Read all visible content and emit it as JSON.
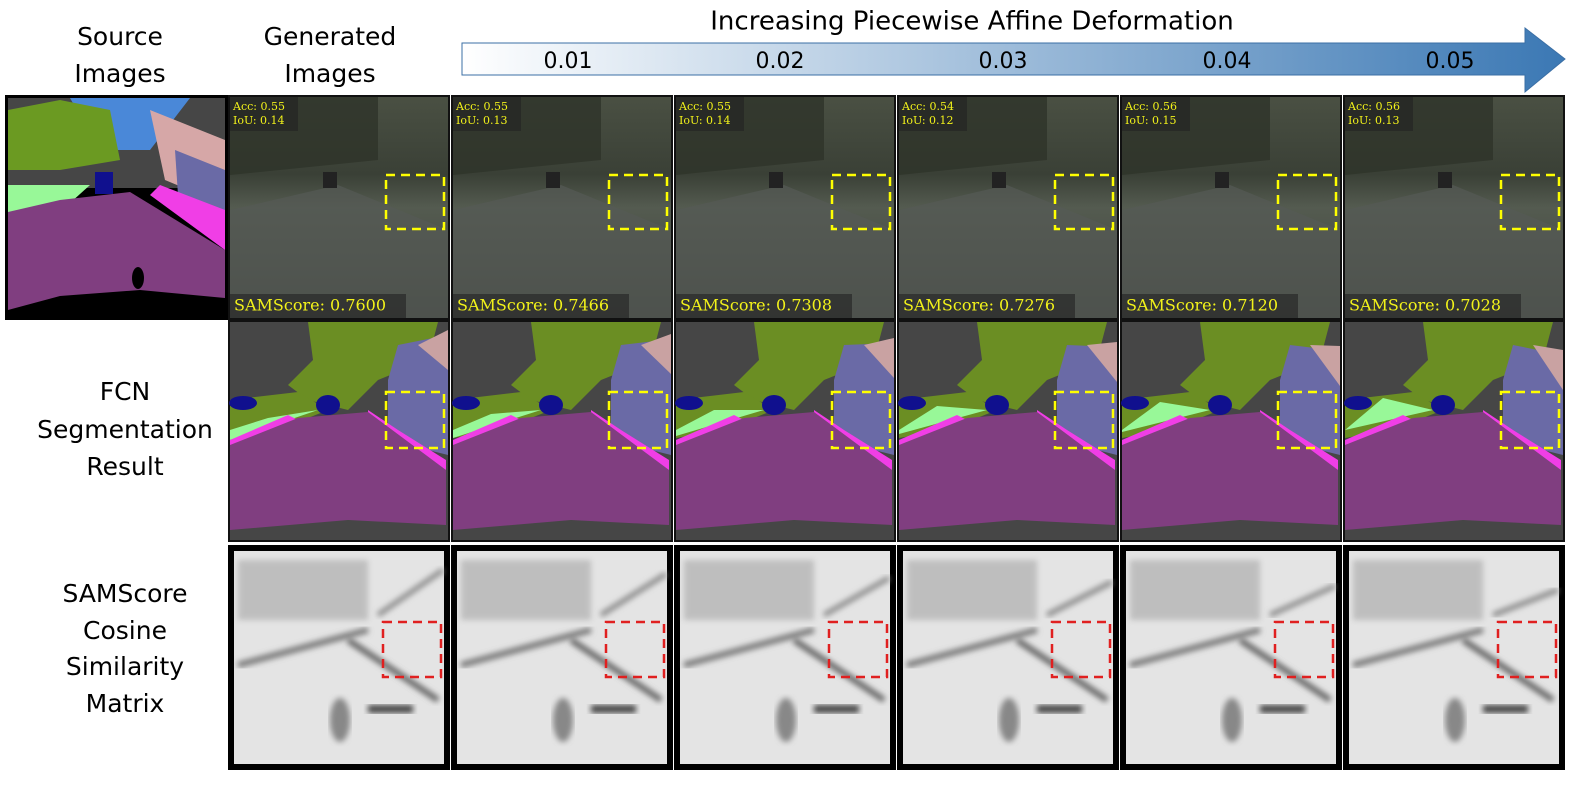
{
  "header": {
    "source": [
      "Source",
      "Images"
    ],
    "generated": [
      "Generated",
      "Images"
    ],
    "arrow_title": "Increasing Piecewise Affine Deformation",
    "levels": [
      "0.01",
      "0.02",
      "0.03",
      "0.04",
      "0.05"
    ]
  },
  "row_labels": {
    "segmentation": [
      "FCN",
      "Segmentation",
      "Result"
    ],
    "similarity": [
      "SAMScore",
      "Cosine",
      "Similarity",
      "Matrix"
    ]
  },
  "columns": [
    {
      "acc": "Acc: 0.55",
      "iou": "IoU: 0.14",
      "samscore": "SAMScore: 0.7600"
    },
    {
      "acc": "Acc: 0.55",
      "iou": "IoU: 0.13",
      "samscore": "SAMScore: 0.7466"
    },
    {
      "acc": "Acc: 0.55",
      "iou": "IoU: 0.14",
      "samscore": "SAMScore: 0.7308"
    },
    {
      "acc": "Acc: 0.54",
      "iou": "IoU: 0.12",
      "samscore": "SAMScore: 0.7276"
    },
    {
      "acc": "Acc: 0.56",
      "iou": "IoU: 0.15",
      "samscore": "SAMScore: 0.7120"
    },
    {
      "acc": "Acc: 0.56",
      "iou": "IoU: 0.13",
      "samscore": "SAMScore: 0.7028"
    }
  ]
}
